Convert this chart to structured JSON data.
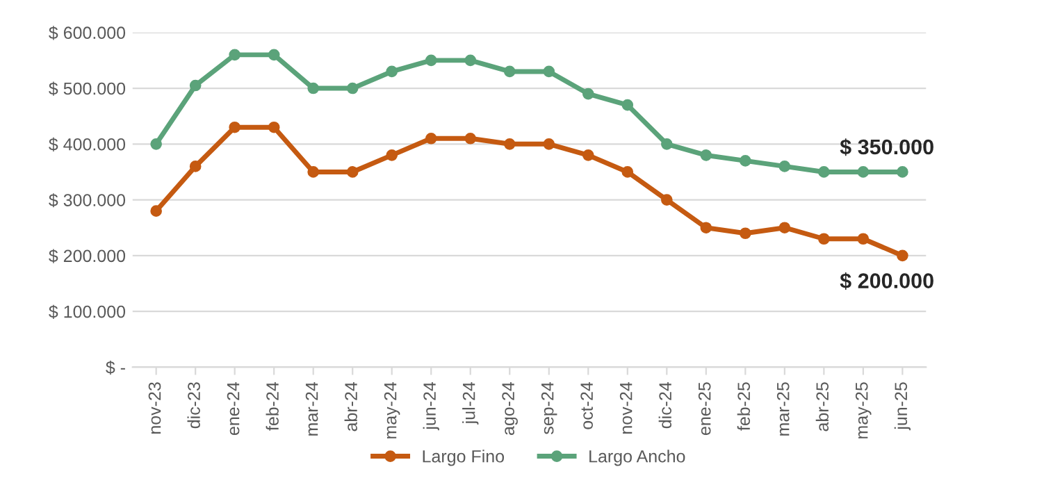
{
  "chart_data": {
    "type": "line",
    "categories": [
      "nov-23",
      "dic-23",
      "ene-24",
      "feb-24",
      "mar-24",
      "abr-24",
      "may-24",
      "jun-24",
      "jul-24",
      "ago-24",
      "sep-24",
      "oct-24",
      "nov-24",
      "dic-24",
      "ene-25",
      "feb-25",
      "mar-25",
      "abr-25",
      "may-25",
      "jun-25"
    ],
    "series": [
      {
        "name": "Largo Fino",
        "color": "#c55a11",
        "values": [
          280000,
          360000,
          430000,
          430000,
          350000,
          350000,
          380000,
          410000,
          410000,
          400000,
          400000,
          380000,
          350000,
          300000,
          250000,
          240000,
          250000,
          230000,
          230000,
          200000
        ]
      },
      {
        "name": "Largo Ancho",
        "color": "#5ba37a",
        "values": [
          400000,
          505000,
          560000,
          560000,
          500000,
          500000,
          530000,
          550000,
          550000,
          530000,
          530000,
          490000,
          470000,
          400000,
          380000,
          370000,
          360000,
          350000,
          350000,
          350000
        ]
      }
    ],
    "ylim": [
      0,
      600000
    ],
    "yticks": [
      {
        "value": 0,
        "label": "$ -"
      },
      {
        "value": 100000,
        "label": "$ 100.000"
      },
      {
        "value": 200000,
        "label": "$ 200.000"
      },
      {
        "value": 300000,
        "label": "$ 300.000"
      },
      {
        "value": 400000,
        "label": "$ 400.000"
      },
      {
        "value": 500000,
        "label": "$ 500.000"
      },
      {
        "value": 600000,
        "label": "$ 600.000"
      }
    ],
    "annotations": [
      {
        "text": "$ 350.000",
        "x": "jun-25",
        "y": 350000
      },
      {
        "text": "$ 200.000",
        "x": "jun-25",
        "y": 200000
      }
    ],
    "grid": "y",
    "legend": "bottom",
    "marker": "circle",
    "line_style": "solid"
  }
}
